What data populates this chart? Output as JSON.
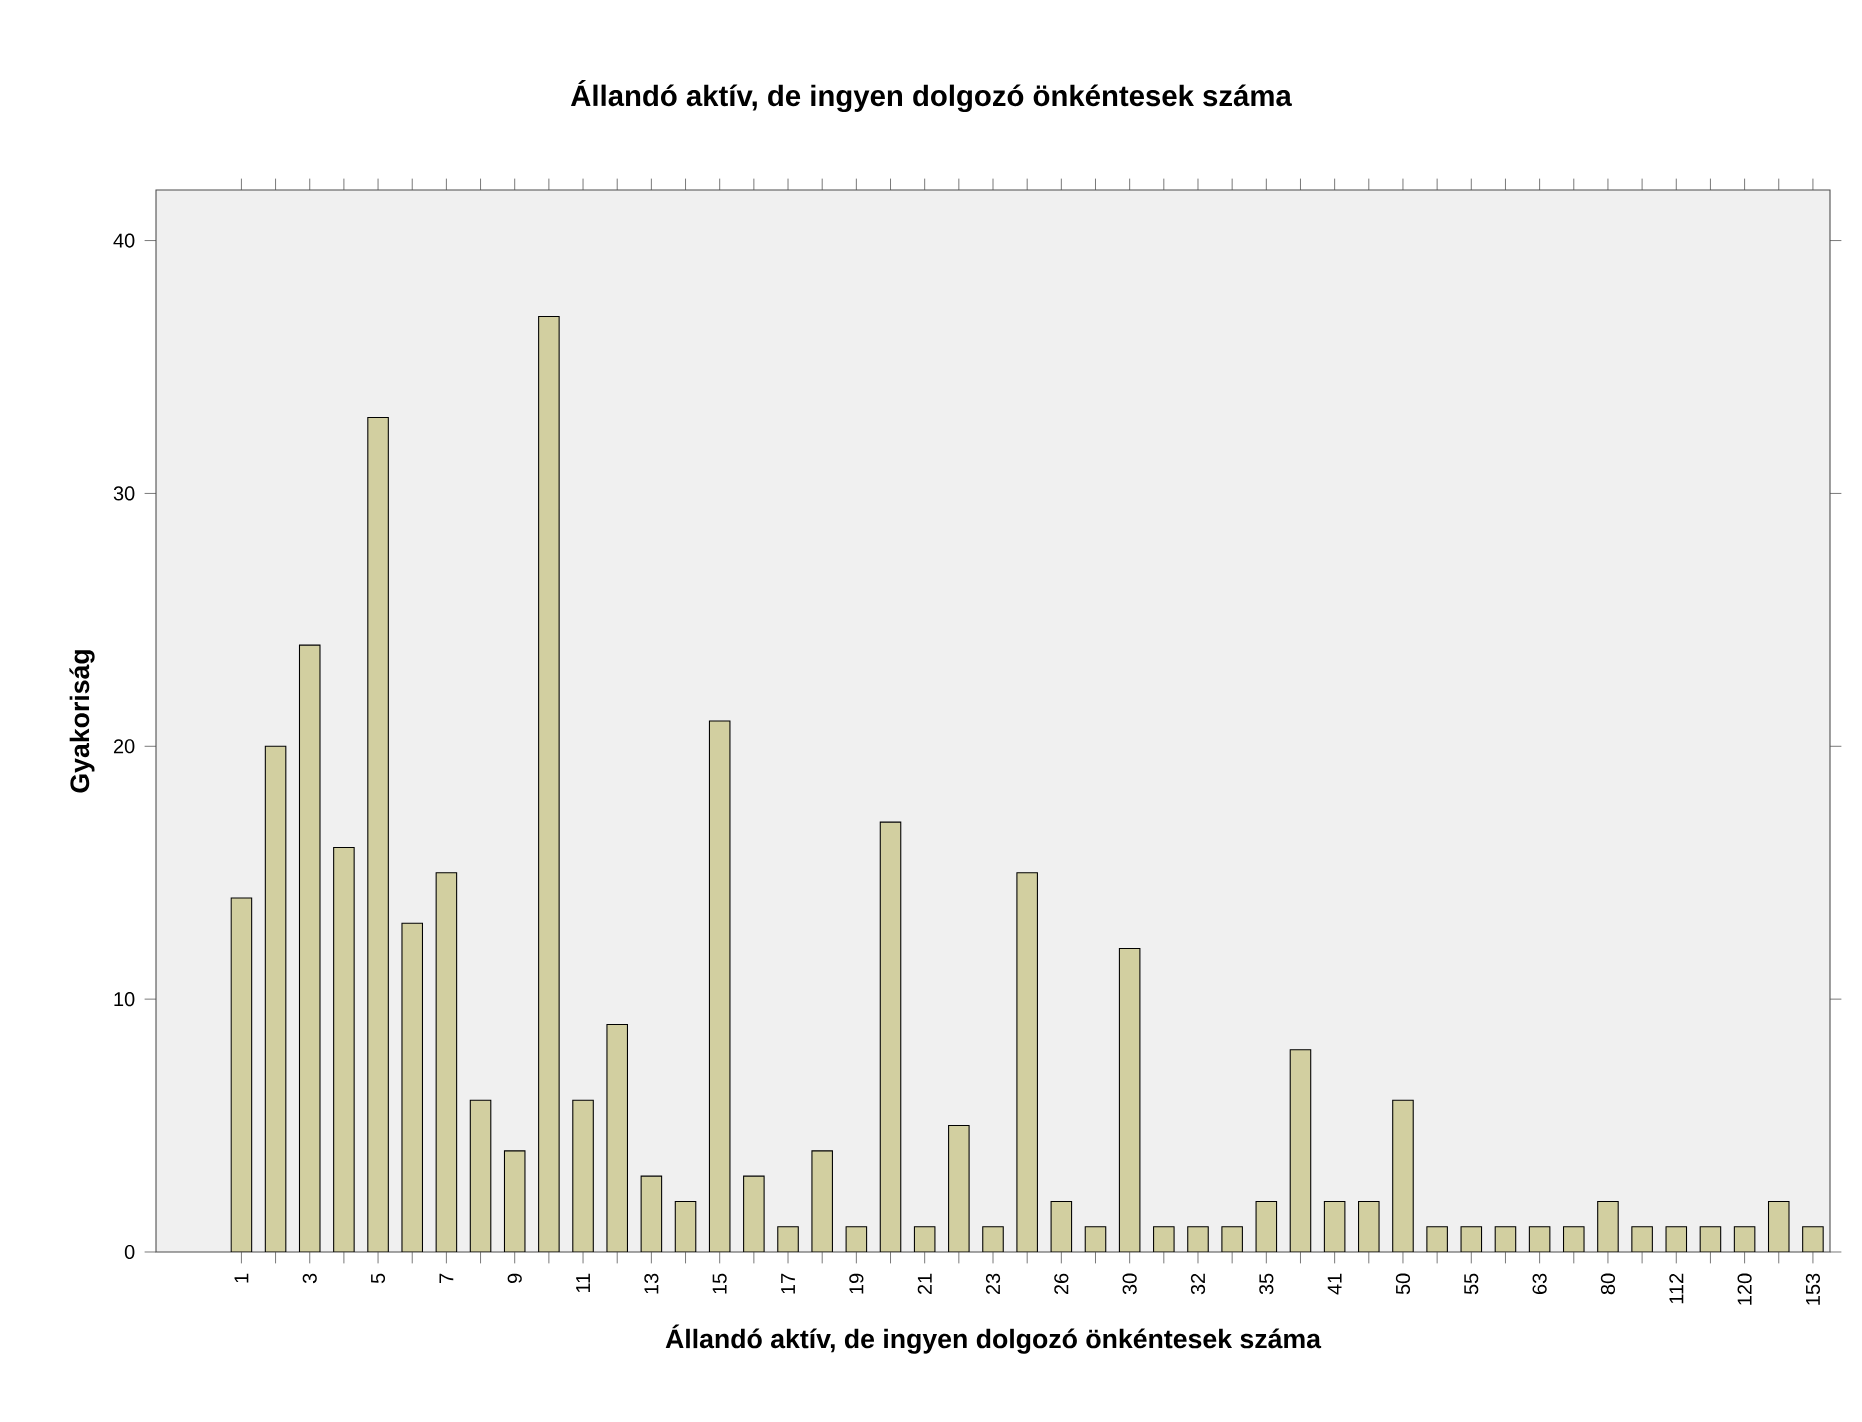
{
  "chart_data": {
    "type": "bar",
    "title": "Állandó aktív, de ingyen dolgozó önkéntesek száma",
    "xlabel": "Állandó aktív, de ingyen dolgozó önkéntesek száma",
    "ylabel": "Gyakoriság",
    "categories": [
      "1",
      null,
      "3",
      null,
      "5",
      null,
      "7",
      null,
      "9",
      null,
      "11",
      null,
      "13",
      null,
      "15",
      null,
      "17",
      null,
      "19",
      null,
      "21",
      null,
      "23",
      null,
      "26",
      null,
      "30",
      null,
      "32",
      null,
      "35",
      null,
      "41",
      null,
      "50",
      null,
      "55",
      null,
      "63",
      null,
      "80",
      null,
      "112",
      null,
      "120",
      null,
      "153"
    ],
    "values": [
      14,
      20,
      24,
      16,
      33,
      13,
      15,
      6,
      4,
      37,
      6,
      9,
      3,
      2,
      21,
      3,
      1,
      4,
      1,
      17,
      1,
      5,
      1,
      15,
      2,
      1,
      12,
      1,
      1,
      1,
      2,
      8,
      2,
      2,
      6,
      1,
      1,
      1,
      1,
      1,
      2,
      1,
      1,
      1,
      1,
      2,
      1
    ],
    "color": "#d2cfa0",
    "ylim": [
      0,
      42
    ],
    "yticks": [
      0,
      10,
      20,
      30,
      40
    ]
  }
}
